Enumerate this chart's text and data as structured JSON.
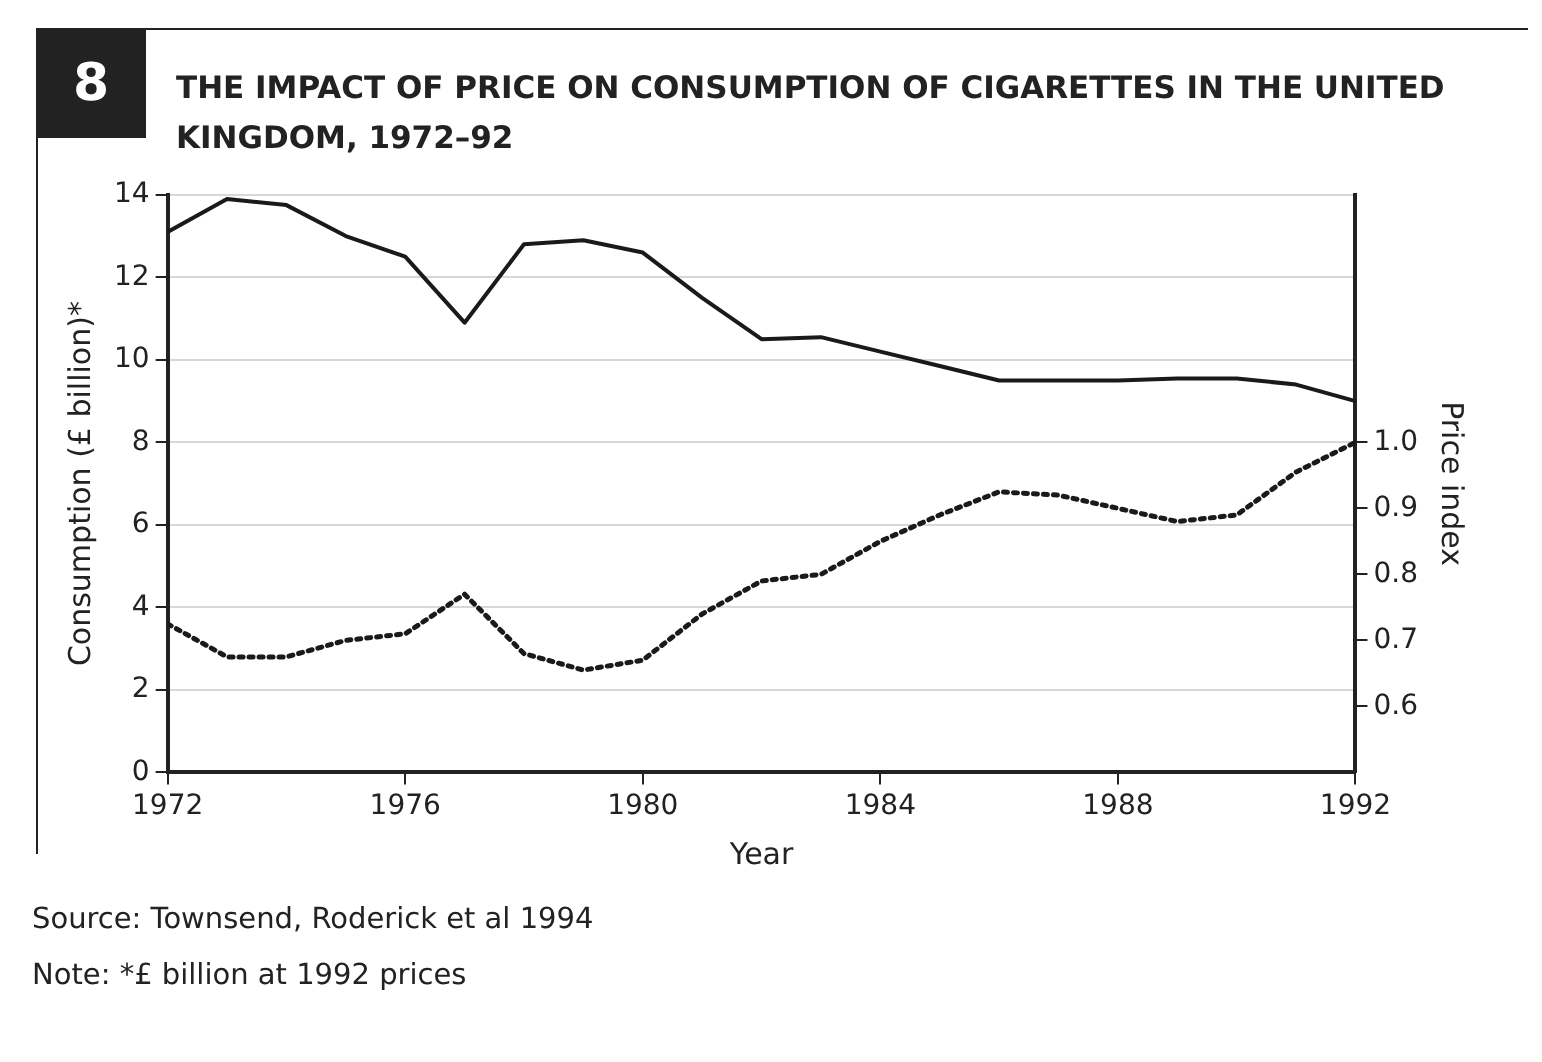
{
  "chart_data": {
    "type": "line",
    "title": "THE IMPACT OF PRICE ON CONSUMPTION OF CIGARETTES IN THE UNITED KINGDOM, 1972–92",
    "xlabel": "Year",
    "ylabel": "Consumption (£ billion)*",
    "y2label": "Price index",
    "x": [
      1972,
      1973,
      1974,
      1975,
      1976,
      1977,
      1978,
      1979,
      1980,
      1981,
      1982,
      1983,
      1984,
      1985,
      1986,
      1987,
      1988,
      1989,
      1990,
      1991,
      1992
    ],
    "series": [
      {
        "color": "#1a1a1a",
        "line_style": "solid",
        "values": [
          13.1,
          13.9,
          13.75,
          13.0,
          12.5,
          10.9,
          12.8,
          12.9,
          12.6,
          11.5,
          10.5,
          10.55,
          10.2,
          9.85,
          9.5,
          9.5,
          9.5,
          9.55,
          9.55,
          9.4,
          9.0
        ]
      },
      {
        "color": "#1a1a1a",
        "line_style": "dotted",
        "axis": "y2",
        "values": [
          0.725,
          0.675,
          0.675,
          0.7,
          0.71,
          0.77,
          0.68,
          0.655,
          0.67,
          0.74,
          0.79,
          0.8,
          0.85,
          0.89,
          0.925,
          0.92,
          0.9,
          0.88,
          0.89,
          0.955,
          1.0
        ]
      }
    ],
    "xlim": [
      1972,
      1992
    ],
    "xticks": [
      1972,
      1976,
      1980,
      1984,
      1988,
      1992
    ],
    "ylim": [
      0,
      14
    ],
    "yticks": [
      0,
      2,
      4,
      6,
      8,
      10,
      12,
      14
    ],
    "y2lim": [
      0.5,
      1.375
    ],
    "y2ticks": [
      {
        "value": 0.6,
        "label": "0.6"
      },
      {
        "value": 0.7,
        "label": "0.7"
      },
      {
        "value": 0.8,
        "label": "0.8"
      },
      {
        "value": 0.9,
        "label": "0.9"
      },
      {
        "value": 1.0,
        "label": "1.0"
      }
    ],
    "grid": "y",
    "legend": false,
    "marker": "none",
    "annotations": [
      "8",
      "Source: Townsend, Roderick et al 1994",
      "Note: *£ billion at 1992 prices"
    ]
  }
}
